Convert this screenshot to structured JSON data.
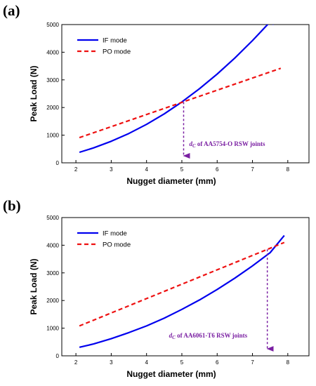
{
  "colors": {
    "if_mode": "#0000ee",
    "po_mode": "#ee1111",
    "annotation": "#7a1fa2",
    "axis": "#000000"
  },
  "chart_data": [
    {
      "panel_label": "(a)",
      "type": "line",
      "xlabel": "Nugget diameter (mm)",
      "ylabel": "Peak Load (N)",
      "xlim": [
        1.6,
        8.6
      ],
      "ylim": [
        0,
        5000
      ],
      "xticks": [
        2,
        3,
        4,
        5,
        6,
        7,
        8
      ],
      "yticks": [
        0,
        1000,
        2000,
        3000,
        4000,
        5000
      ],
      "grid": false,
      "legend_position": "top-left",
      "series": [
        {
          "name": "IF mode",
          "style": "solid",
          "color": "#0000ee",
          "x": [
            2.1,
            2.5,
            3.0,
            3.5,
            4.0,
            4.5,
            5.0,
            5.5,
            6.0,
            6.5,
            7.0,
            7.5,
            7.6
          ],
          "y": [
            380,
            540,
            780,
            1060,
            1390,
            1770,
            2200,
            2680,
            3210,
            3790,
            4420,
            5100,
            5000
          ]
        },
        {
          "name": "PO mode",
          "style": "dashed",
          "color": "#ee1111",
          "x": [
            2.1,
            7.8
          ],
          "y": [
            910,
            3420
          ]
        }
      ],
      "annotation": {
        "prefix": "d",
        "subscript": "C",
        "text": " of AA5754-O RSW joints",
        "x": 5.05,
        "y_from": 2200,
        "y_to": 0
      }
    },
    {
      "panel_label": "(b)",
      "type": "line",
      "xlabel": "Nugget diameter (mm)",
      "ylabel": "Peak Load (N)",
      "xlim": [
        1.6,
        8.6
      ],
      "ylim": [
        0,
        5000
      ],
      "xticks": [
        2,
        3,
        4,
        5,
        6,
        7,
        8
      ],
      "yticks": [
        0,
        1000,
        2000,
        3000,
        4000,
        5000
      ],
      "grid": false,
      "legend_position": "top-left",
      "series": [
        {
          "name": "IF mode",
          "style": "solid",
          "color": "#0000ee",
          "x": [
            2.1,
            2.5,
            3.0,
            3.5,
            4.0,
            4.5,
            5.0,
            5.5,
            6.0,
            6.5,
            7.0,
            7.5,
            7.9
          ],
          "y": [
            310,
            430,
            620,
            840,
            1080,
            1360,
            1680,
            2020,
            2400,
            2810,
            3250,
            3730,
            4350
          ]
        },
        {
          "name": "PO mode",
          "style": "dashed",
          "color": "#ee1111",
          "x": [
            2.1,
            7.9
          ],
          "y": [
            1080,
            4100
          ]
        }
      ],
      "annotation": {
        "prefix": "d",
        "subscript": "C",
        "text": " of AA6061-T6 RSW joints",
        "x": 7.42,
        "y_from": 3850,
        "y_to": 0
      }
    }
  ]
}
